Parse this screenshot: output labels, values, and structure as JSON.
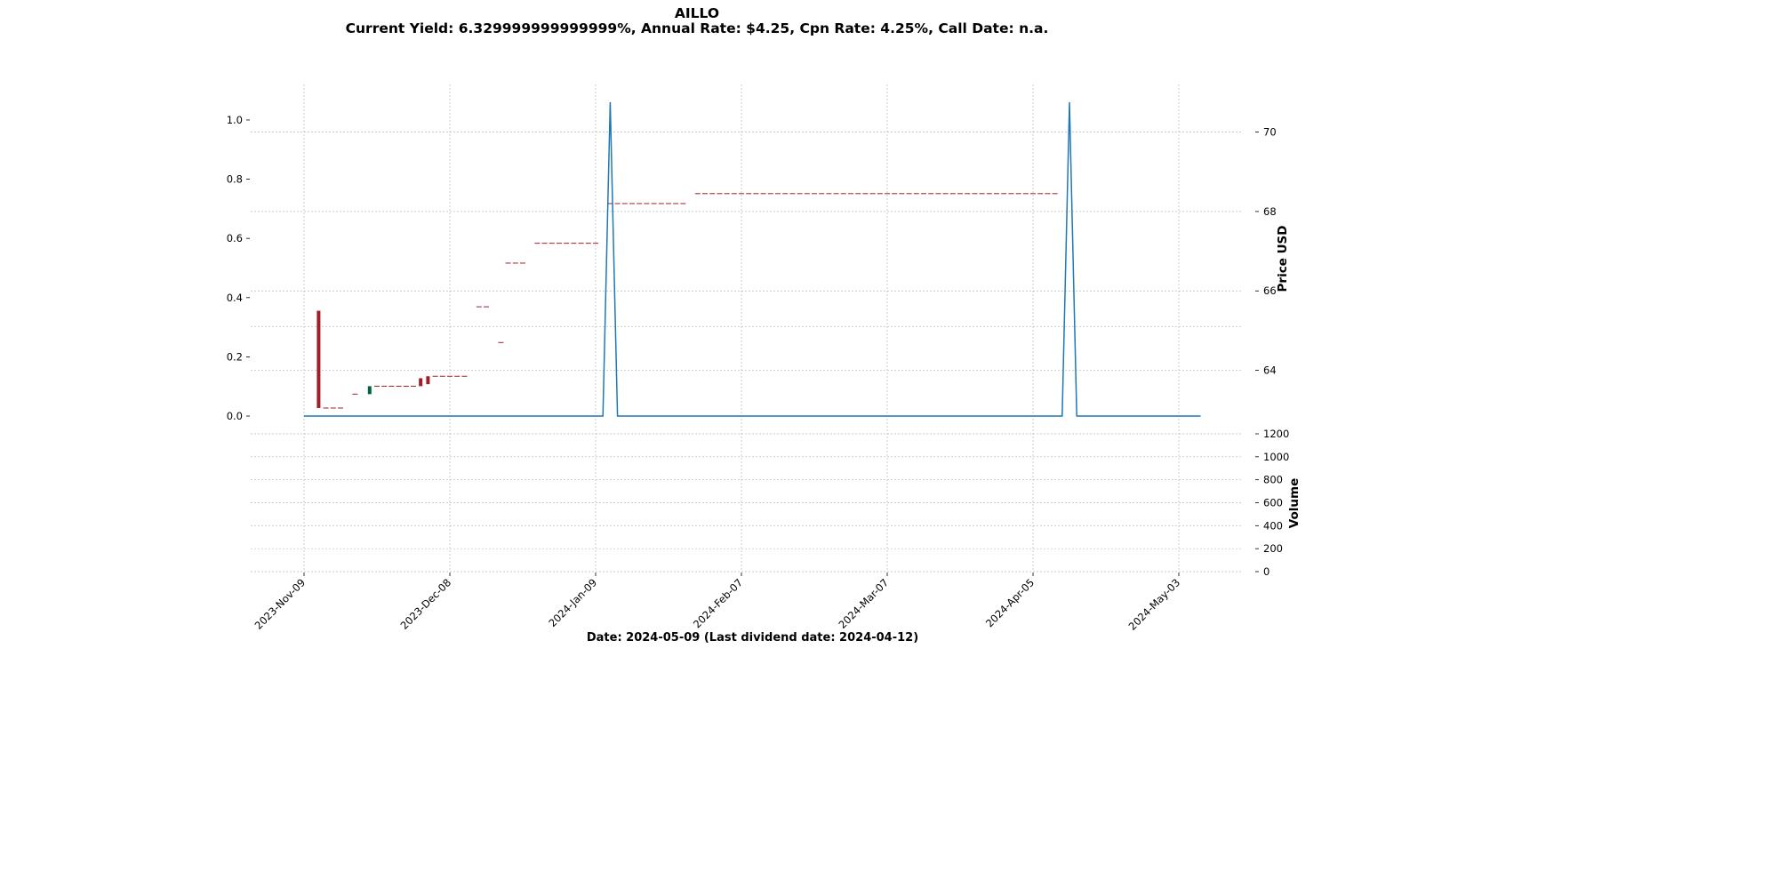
{
  "title": "AILLO",
  "subtitle": "Current Yield: 6.329999999999999%, Annual Rate: $4.25, Cpn Rate: 4.25%, Call Date: n.a.",
  "xlabel": "Date: 2024-05-09   (Last dividend date: 2024-04-12)",
  "chart_data": {
    "type": "candlestick",
    "title": "AILLO",
    "subtitle": "Current Yield: 6.329999999999999%, Annual Rate: $4.25, Cpn Rate: 4.25%, Call Date: n.a.",
    "xlabel": "Date: 2024-05-09   (Last dividend date: 2024-04-12)",
    "x_ticks": [
      "2023-Nov-09",
      "2023-Dec-08",
      "2024-Jan-09",
      "2024-Feb-07",
      "2024-Mar-07",
      "2024-Apr-05",
      "2024-May-03"
    ],
    "grid": true,
    "colors": {
      "up": "#006340",
      "down": "#a01e28",
      "vol_up": "#007a00",
      "vol_down": "#d0101c",
      "dividend_line": "#1f77b4"
    },
    "left_axis": {
      "ticks": [
        "0.0",
        "0.2",
        "0.4",
        "0.6",
        "0.8",
        "1.0"
      ],
      "ylim": [
        -0.06,
        1.12
      ]
    },
    "price_axis": {
      "label": "Price USD",
      "ticks": [
        "64",
        "66",
        "68",
        "70"
      ],
      "ylim": [
        62.4,
        71.2
      ]
    },
    "volume_axis": {
      "label": "Volume",
      "ticks": [
        "0",
        "200",
        "400",
        "600",
        "800",
        "1000",
        "1200"
      ],
      "ylim": [
        0,
        1200
      ]
    },
    "dividend_series": {
      "x": [
        0,
        41,
        42,
        43,
        104,
        105,
        106,
        123
      ],
      "y": [
        0,
        0,
        1.06,
        0,
        0,
        1.06,
        0,
        0
      ]
    },
    "candles": [
      {
        "i": 2,
        "o": 65.5,
        "c": 63.05,
        "dir": "down",
        "bar": "solid"
      },
      {
        "i": 3,
        "o": 63.05,
        "c": 63.05,
        "dir": "flat"
      },
      {
        "i": 4,
        "o": 63.05,
        "c": 63.05,
        "dir": "flat"
      },
      {
        "i": 5,
        "o": 63.05,
        "c": 63.05,
        "dir": "flat"
      },
      {
        "i": 7,
        "o": 63.4,
        "c": 63.4,
        "dir": "flat"
      },
      {
        "i": 9,
        "o": 63.4,
        "c": 63.6,
        "dir": "up"
      },
      {
        "i": 10,
        "o": 63.6,
        "c": 63.6,
        "dir": "flat"
      },
      {
        "i": 11,
        "o": 63.6,
        "c": 63.6,
        "dir": "flat"
      },
      {
        "i": 12,
        "o": 63.6,
        "c": 63.6,
        "dir": "flat"
      },
      {
        "i": 13,
        "o": 63.6,
        "c": 63.6,
        "dir": "flat"
      },
      {
        "i": 14,
        "o": 63.6,
        "c": 63.6,
        "dir": "flat"
      },
      {
        "i": 15,
        "o": 63.6,
        "c": 63.6,
        "dir": "flat"
      },
      {
        "i": 16,
        "o": 63.8,
        "c": 63.6,
        "dir": "down"
      },
      {
        "i": 17,
        "o": 63.85,
        "c": 63.65,
        "dir": "down"
      },
      {
        "i": 18,
        "o": 63.85,
        "c": 63.85,
        "dir": "flat"
      },
      {
        "i": 19,
        "o": 63.85,
        "c": 63.85,
        "dir": "flat"
      },
      {
        "i": 20,
        "o": 63.85,
        "c": 63.85,
        "dir": "flat"
      },
      {
        "i": 21,
        "o": 63.85,
        "c": 63.85,
        "dir": "flat"
      },
      {
        "i": 22,
        "o": 63.85,
        "c": 63.85,
        "dir": "flat"
      },
      {
        "i": 24,
        "o": 65.6,
        "c": 65.6,
        "dir": "flat"
      },
      {
        "i": 25,
        "o": 65.6,
        "c": 65.6,
        "dir": "flat"
      },
      {
        "i": 27,
        "o": 64.7,
        "c": 64.7,
        "dir": "flat"
      },
      {
        "i": 28,
        "o": 66.7,
        "c": 66.7,
        "dir": "flat"
      },
      {
        "i": 29,
        "o": 66.7,
        "c": 66.7,
        "dir": "flat"
      },
      {
        "i": 30,
        "o": 66.7,
        "c": 66.7,
        "dir": "flat"
      },
      {
        "i": 32,
        "o": 67.2,
        "c": 67.2,
        "dir": "flat"
      },
      {
        "i": 33,
        "o": 67.2,
        "c": 67.2,
        "dir": "flat"
      },
      {
        "i": 34,
        "o": 67.2,
        "c": 67.2,
        "dir": "flat"
      },
      {
        "i": 35,
        "o": 67.2,
        "c": 67.2,
        "dir": "flat"
      },
      {
        "i": 36,
        "o": 67.2,
        "c": 67.2,
        "dir": "flat"
      },
      {
        "i": 37,
        "o": 67.2,
        "c": 67.2,
        "dir": "flat"
      },
      {
        "i": 38,
        "o": 67.2,
        "c": 67.2,
        "dir": "flat"
      },
      {
        "i": 39,
        "o": 67.2,
        "c": 67.2,
        "dir": "flat"
      },
      {
        "i": 40,
        "o": 67.2,
        "c": 67.2,
        "dir": "flat"
      },
      {
        "i": 42,
        "o": 68.2,
        "c": 68.2,
        "dir": "flat"
      },
      {
        "i": 43,
        "o": 68.2,
        "c": 68.2,
        "dir": "flat"
      },
      {
        "i": 44,
        "o": 68.2,
        "c": 68.2,
        "dir": "flat"
      },
      {
        "i": 45,
        "o": 68.2,
        "c": 68.2,
        "dir": "flat"
      },
      {
        "i": 46,
        "o": 68.2,
        "c": 68.2,
        "dir": "flat"
      },
      {
        "i": 47,
        "o": 68.2,
        "c": 68.2,
        "dir": "flat"
      },
      {
        "i": 48,
        "o": 68.2,
        "c": 68.2,
        "dir": "flat"
      },
      {
        "i": 49,
        "o": 68.2,
        "c": 68.2,
        "dir": "flat"
      },
      {
        "i": 50,
        "o": 68.2,
        "c": 68.2,
        "dir": "flat"
      },
      {
        "i": 51,
        "o": 68.2,
        "c": 68.2,
        "dir": "flat"
      },
      {
        "i": 52,
        "o": 68.2,
        "c": 68.2,
        "dir": "flat"
      },
      {
        "i": 54,
        "o": 68.45,
        "c": 68.45,
        "dir": "flat"
      },
      {
        "i": 55,
        "o": 68.45,
        "c": 68.45,
        "dir": "flat"
      },
      {
        "i": 56,
        "o": 68.45,
        "c": 68.45,
        "dir": "flat"
      },
      {
        "i": 57,
        "o": 68.45,
        "c": 68.45,
        "dir": "flat"
      },
      {
        "i": 58,
        "o": 68.45,
        "c": 68.45,
        "dir": "flat"
      },
      {
        "i": 59,
        "o": 68.45,
        "c": 68.45,
        "dir": "flat"
      },
      {
        "i": 60,
        "o": 68.45,
        "c": 68.45,
        "dir": "flat"
      },
      {
        "i": 61,
        "o": 68.45,
        "c": 68.45,
        "dir": "flat"
      },
      {
        "i": 62,
        "o": 68.45,
        "c": 68.45,
        "dir": "flat"
      },
      {
        "i": 63,
        "o": 68.45,
        "c": 68.45,
        "dir": "flat"
      },
      {
        "i": 64,
        "o": 68.45,
        "c": 68.45,
        "dir": "flat"
      },
      {
        "i": 65,
        "o": 68.45,
        "c": 68.45,
        "dir": "flat"
      },
      {
        "i": 66,
        "o": 68.45,
        "c": 68.45,
        "dir": "flat"
      },
      {
        "i": 67,
        "o": 68.45,
        "c": 68.45,
        "dir": "flat"
      },
      {
        "i": 68,
        "o": 68.45,
        "c": 68.45,
        "dir": "flat"
      },
      {
        "i": 69,
        "o": 68.45,
        "c": 68.45,
        "dir": "flat"
      },
      {
        "i": 70,
        "o": 68.45,
        "c": 68.45,
        "dir": "flat"
      },
      {
        "i": 71,
        "o": 68.45,
        "c": 68.45,
        "dir": "flat"
      },
      {
        "i": 72,
        "o": 68.45,
        "c": 68.45,
        "dir": "flat"
      },
      {
        "i": 73,
        "o": 68.45,
        "c": 68.45,
        "dir": "flat"
      },
      {
        "i": 74,
        "o": 68.45,
        "c": 68.45,
        "dir": "flat"
      },
      {
        "i": 75,
        "o": 68.45,
        "c": 68.45,
        "dir": "flat"
      },
      {
        "i": 76,
        "o": 68.45,
        "c": 68.45,
        "dir": "flat"
      },
      {
        "i": 77,
        "o": 68.45,
        "c": 68.45,
        "dir": "flat"
      },
      {
        "i": 78,
        "o": 68.45,
        "c": 68.45,
        "dir": "flat"
      },
      {
        "i": 79,
        "o": 68.45,
        "c": 68.45,
        "dir": "flat"
      },
      {
        "i": 80,
        "o": 68.45,
        "c": 68.45,
        "dir": "flat"
      },
      {
        "i": 81,
        "o": 68.45,
        "c": 68.45,
        "dir": "flat"
      },
      {
        "i": 82,
        "o": 68.45,
        "c": 68.45,
        "dir": "flat"
      },
      {
        "i": 83,
        "o": 68.45,
        "c": 68.45,
        "dir": "flat"
      },
      {
        "i": 84,
        "o": 68.45,
        "c": 68.45,
        "dir": "flat"
      },
      {
        "i": 85,
        "o": 68.45,
        "c": 68.45,
        "dir": "flat"
      },
      {
        "i": 86,
        "o": 68.45,
        "c": 68.45,
        "dir": "flat"
      },
      {
        "i": 87,
        "o": 68.45,
        "c": 68.45,
        "dir": "flat"
      },
      {
        "i": 88,
        "o": 68.45,
        "c": 68.45,
        "dir": "flat"
      },
      {
        "i": 89,
        "o": 68.45,
        "c": 68.45,
        "dir": "flat"
      },
      {
        "i": 90,
        "o": 68.45,
        "c": 68.45,
        "dir": "flat"
      },
      {
        "i": 91,
        "o": 68.45,
        "c": 68.45,
        "dir": "flat"
      },
      {
        "i": 92,
        "o": 68.45,
        "c": 68.45,
        "dir": "flat"
      },
      {
        "i": 93,
        "o": 68.45,
        "c": 68.45,
        "dir": "flat"
      },
      {
        "i": 94,
        "o": 68.45,
        "c": 68.45,
        "dir": "flat"
      },
      {
        "i": 95,
        "o": 68.45,
        "c": 68.45,
        "dir": "flat"
      },
      {
        "i": 96,
        "o": 68.45,
        "c": 68.45,
        "dir": "flat"
      },
      {
        "i": 97,
        "o": 68.45,
        "c": 68.45,
        "dir": "flat"
      },
      {
        "i": 98,
        "o": 68.45,
        "c": 68.45,
        "dir": "flat"
      },
      {
        "i": 99,
        "o": 68.45,
        "c": 68.45,
        "dir": "flat"
      },
      {
        "i": 100,
        "o": 68.45,
        "c": 68.45,
        "dir": "flat"
      },
      {
        "i": 101,
        "o": 68.45,
        "c": 68.45,
        "dir": "flat"
      },
      {
        "i": 102,
        "o": 68.45,
        "c": 68.45,
        "dir": "flat"
      },
      {
        "i": 103,
        "o": 68.45,
        "c": 68.45,
        "dir": "flat"
      }
    ]
  }
}
